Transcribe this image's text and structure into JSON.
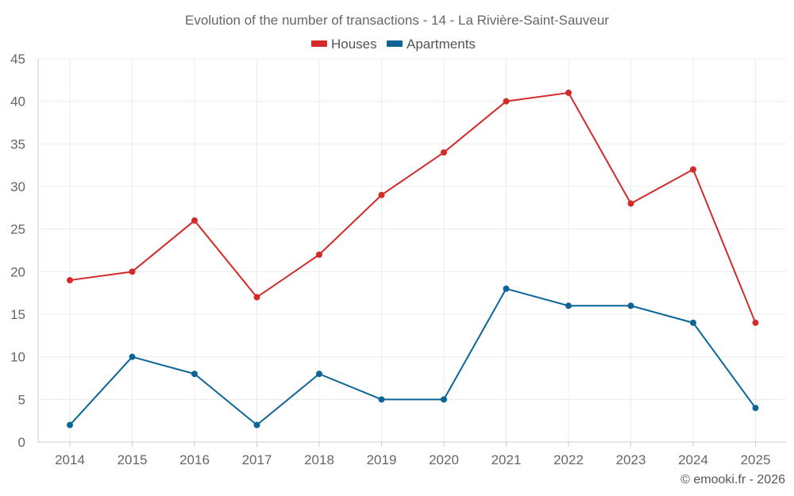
{
  "chart_data": {
    "type": "line",
    "title": "Evolution of the number of transactions - 14 - La Rivière-Saint-Sauveur",
    "categories": [
      "2014",
      "2015",
      "2016",
      "2017",
      "2018",
      "2019",
      "2020",
      "2021",
      "2022",
      "2023",
      "2024",
      "2025"
    ],
    "series": [
      {
        "name": "Houses",
        "color": "#d32a2a",
        "values": [
          19,
          20,
          26,
          17,
          22,
          29,
          34,
          40,
          41,
          28,
          32,
          14
        ]
      },
      {
        "name": "Apartments",
        "color": "#0b6596",
        "values": [
          2,
          10,
          8,
          2,
          8,
          5,
          5,
          18,
          16,
          16,
          14,
          4
        ]
      }
    ],
    "y_ticks": [
      "0",
      "5",
      "10",
      "15",
      "20",
      "25",
      "30",
      "35",
      "40",
      "45"
    ],
    "ylim": [
      0,
      45
    ],
    "xlabel": "",
    "ylabel": "",
    "grid": true,
    "legend": "top-center"
  },
  "credit": "© emooki.fr - 2026"
}
